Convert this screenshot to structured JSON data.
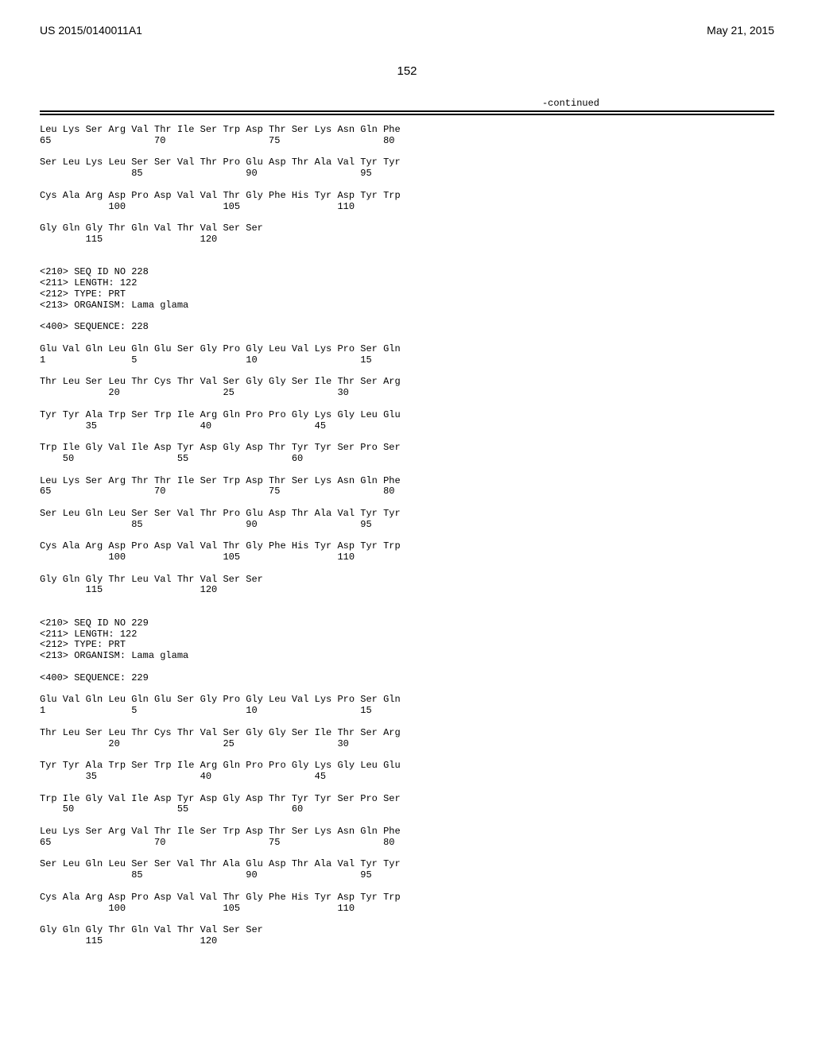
{
  "header": {
    "left": "US 2015/0140011A1",
    "right": "May 21, 2015"
  },
  "page_number": "152",
  "continued_label": "-continued",
  "seq_blocks": [
    {
      "lines": [
        "Leu Lys Ser Arg Val Thr Ile Ser Trp Asp Thr Ser Lys Asn Gln Phe",
        "65                  70                  75                  80",
        "",
        "Ser Leu Lys Leu Ser Ser Val Thr Pro Glu Asp Thr Ala Val Tyr Tyr",
        "                85                  90                  95",
        "",
        "Cys Ala Arg Asp Pro Asp Val Val Thr Gly Phe His Tyr Asp Tyr Trp",
        "            100                 105                 110",
        "",
        "Gly Gln Gly Thr Gln Val Thr Val Ser Ser",
        "        115                 120",
        ""
      ]
    },
    {
      "lines": [
        "<210> SEQ ID NO 228",
        "<211> LENGTH: 122",
        "<212> TYPE: PRT",
        "<213> ORGANISM: Lama glama",
        "",
        "<400> SEQUENCE: 228",
        "",
        "Glu Val Gln Leu Gln Glu Ser Gly Pro Gly Leu Val Lys Pro Ser Gln",
        "1               5                   10                  15",
        "",
        "Thr Leu Ser Leu Thr Cys Thr Val Ser Gly Gly Ser Ile Thr Ser Arg",
        "            20                  25                  30",
        "",
        "Tyr Tyr Ala Trp Ser Trp Ile Arg Gln Pro Pro Gly Lys Gly Leu Glu",
        "        35                  40                  45",
        "",
        "Trp Ile Gly Val Ile Asp Tyr Asp Gly Asp Thr Tyr Tyr Ser Pro Ser",
        "    50                  55                  60",
        "",
        "Leu Lys Ser Arg Thr Thr Ile Ser Trp Asp Thr Ser Lys Asn Gln Phe",
        "65                  70                  75                  80",
        "",
        "Ser Leu Gln Leu Ser Ser Val Thr Pro Glu Asp Thr Ala Val Tyr Tyr",
        "                85                  90                  95",
        "",
        "Cys Ala Arg Asp Pro Asp Val Val Thr Gly Phe His Tyr Asp Tyr Trp",
        "            100                 105                 110",
        "",
        "Gly Gln Gly Thr Leu Val Thr Val Ser Ser",
        "        115                 120",
        ""
      ]
    },
    {
      "lines": [
        "<210> SEQ ID NO 229",
        "<211> LENGTH: 122",
        "<212> TYPE: PRT",
        "<213> ORGANISM: Lama glama",
        "",
        "<400> SEQUENCE: 229",
        "",
        "Glu Val Gln Leu Gln Glu Ser Gly Pro Gly Leu Val Lys Pro Ser Gln",
        "1               5                   10                  15",
        "",
        "Thr Leu Ser Leu Thr Cys Thr Val Ser Gly Gly Ser Ile Thr Ser Arg",
        "            20                  25                  30",
        "",
        "Tyr Tyr Ala Trp Ser Trp Ile Arg Gln Pro Pro Gly Lys Gly Leu Glu",
        "        35                  40                  45",
        "",
        "Trp Ile Gly Val Ile Asp Tyr Asp Gly Asp Thr Tyr Tyr Ser Pro Ser",
        "    50                  55                  60",
        "",
        "Leu Lys Ser Arg Val Thr Ile Ser Trp Asp Thr Ser Lys Asn Gln Phe",
        "65                  70                  75                  80",
        "",
        "Ser Leu Gln Leu Ser Ser Val Thr Ala Glu Asp Thr Ala Val Tyr Tyr",
        "                85                  90                  95",
        "",
        "Cys Ala Arg Asp Pro Asp Val Val Thr Gly Phe His Tyr Asp Tyr Trp",
        "            100                 105                 110",
        "",
        "Gly Gln Gly Thr Gln Val Thr Val Ser Ser",
        "        115                 120"
      ]
    }
  ]
}
